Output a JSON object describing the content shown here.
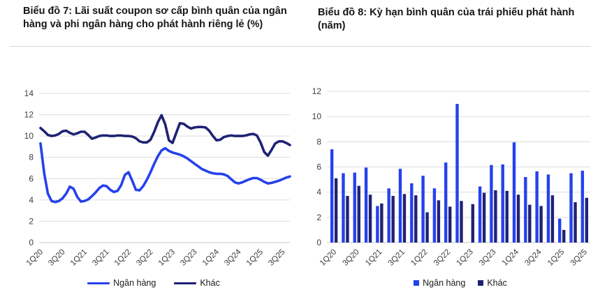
{
  "page_titles": {
    "chart7": "Biểu đồ 7: Lãi suất coupon sơ cấp bình quân của ngân hàng và phi ngân hàng cho phát hành riêng lẻ (%)",
    "chart8": "Biểu đồ 8: Kỳ hạn bình quân của trái phiếu phát hành (năm)"
  },
  "chart_data": [
    {
      "type": "line",
      "title": "Biểu đồ 7: Lãi suất coupon sơ cấp bình quân của ngân hàng và phi ngân hàng cho phát hành riêng lẻ (%)",
      "x_unit": "month",
      "x_range": "2020-01 to 2025-09",
      "tick_labels": [
        "1Q20",
        "3Q20",
        "1Q21",
        "3Q21",
        "1Q22",
        "3Q22",
        "1Q23",
        "3Q23",
        "1Q24",
        "3Q24",
        "1Q25",
        "3Q25"
      ],
      "tick_month_indices": [
        0,
        6,
        12,
        18,
        24,
        30,
        36,
        42,
        48,
        54,
        60,
        66
      ],
      "ylim": [
        0,
        14
      ],
      "ytick_step": 2,
      "grid": true,
      "legend_position": "bottom",
      "series": [
        {
          "name": "Ngân hàng",
          "color": "#2542ec",
          "values": [
            9.3,
            6.5,
            4.6,
            3.9,
            3.8,
            3.9,
            4.15,
            4.6,
            5.25,
            5.05,
            4.3,
            3.85,
            3.9,
            4.05,
            4.35,
            4.7,
            5.1,
            5.35,
            5.3,
            4.95,
            4.75,
            4.85,
            5.4,
            6.35,
            6.6,
            5.8,
            4.95,
            4.9,
            5.3,
            5.9,
            6.6,
            7.4,
            8.1,
            8.65,
            8.85,
            8.6,
            8.45,
            8.35,
            8.25,
            8.1,
            7.9,
            7.65,
            7.4,
            7.15,
            6.9,
            6.75,
            6.6,
            6.5,
            6.45,
            6.45,
            6.4,
            6.25,
            5.95,
            5.65,
            5.55,
            5.65,
            5.8,
            5.95,
            6.05,
            6.05,
            5.9,
            5.7,
            5.55,
            5.6,
            5.7,
            5.8,
            5.95,
            6.1,
            6.2
          ]
        },
        {
          "name": "Khác",
          "color": "#1f2273",
          "values": [
            10.75,
            10.45,
            10.1,
            10.0,
            10.05,
            10.2,
            10.45,
            10.5,
            10.3,
            10.15,
            10.25,
            10.4,
            10.4,
            10.1,
            9.75,
            9.85,
            10.0,
            10.05,
            10.05,
            10.0,
            10.0,
            10.05,
            10.05,
            10.0,
            10.0,
            9.95,
            9.8,
            9.5,
            9.4,
            9.4,
            9.65,
            10.4,
            11.3,
            11.95,
            11.1,
            9.6,
            9.35,
            10.3,
            11.2,
            11.15,
            10.9,
            10.7,
            10.8,
            10.85,
            10.85,
            10.8,
            10.5,
            10.0,
            9.6,
            9.65,
            9.9,
            10.0,
            10.05,
            10.0,
            10.0,
            10.0,
            10.05,
            10.15,
            10.2,
            10.05,
            9.4,
            8.5,
            8.15,
            8.7,
            9.3,
            9.5,
            9.5,
            9.35,
            9.15
          ]
        }
      ]
    },
    {
      "type": "bar",
      "title": "Biểu đồ 8: Kỳ hạn bình quân của trái phiếu phát hành (năm)",
      "categories": [
        "1Q20",
        "2Q20",
        "3Q20",
        "4Q20",
        "1Q21",
        "2Q21",
        "3Q21",
        "4Q21",
        "1Q22",
        "2Q22",
        "3Q22",
        "4Q22",
        "1Q23",
        "2Q23",
        "3Q23",
        "4Q23",
        "1Q24",
        "2Q24",
        "3Q24",
        "4Q24",
        "1Q25",
        "2Q25",
        "3Q25"
      ],
      "shown_tick_indices": [
        0,
        2,
        4,
        6,
        8,
        10,
        12,
        14,
        16,
        18,
        20,
        22
      ],
      "ylim": [
        0,
        12
      ],
      "ytick_step": 2,
      "grid": true,
      "legend_position": "bottom",
      "series": [
        {
          "name": "Ngân hàng",
          "color": "#2542ec",
          "values": [
            7.4,
            5.5,
            5.55,
            5.95,
            2.9,
            4.3,
            5.85,
            4.7,
            5.3,
            4.3,
            6.35,
            11.0,
            null,
            4.45,
            6.15,
            6.2,
            7.95,
            5.2,
            5.65,
            5.4,
            1.9,
            5.5,
            5.7
          ]
        },
        {
          "name": "Khác",
          "color": "#1f2273",
          "values": [
            5.1,
            3.7,
            4.5,
            3.8,
            3.1,
            3.7,
            3.85,
            3.75,
            2.4,
            3.35,
            2.85,
            3.3,
            3.05,
            3.95,
            4.15,
            4.1,
            3.8,
            3.0,
            2.9,
            3.75,
            1.0,
            3.2,
            3.55
          ]
        }
      ]
    }
  ],
  "axis_style": {
    "tick_color": "#3d3d3d",
    "grid_color": "#dcdcdc",
    "axis_line_color": "#c9c9c9"
  }
}
